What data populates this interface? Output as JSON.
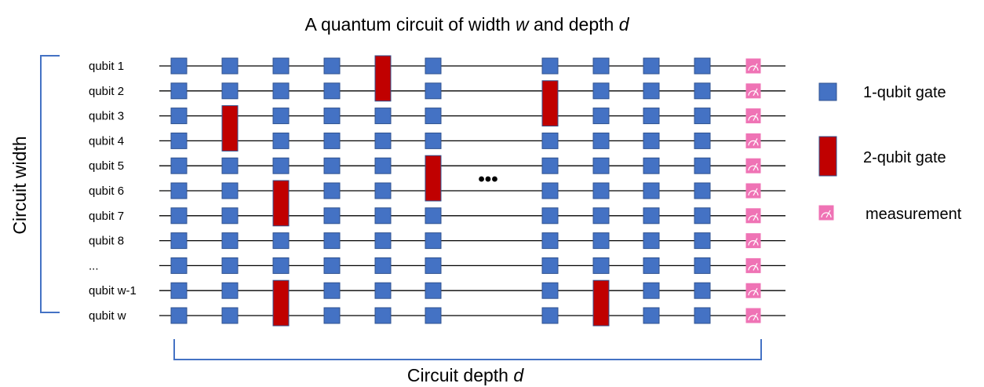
{
  "title": {
    "prefix": "A quantum circuit of width ",
    "w": "w",
    "middle": " and depth ",
    "d": "d"
  },
  "width_label": "Circuit width",
  "depth_label": {
    "prefix": "Circuit depth ",
    "d": "d"
  },
  "qubits": [
    "qubit 1",
    "qubit 2",
    "qubit 3",
    "qubit 4",
    "qubit 5",
    "qubit 6",
    "qubit 7",
    "qubit 8",
    "...",
    "qubit w-1",
    "qubit w"
  ],
  "ellipsis": "•••",
  "legend": [
    {
      "kind": "one_qubit",
      "label": "1-qubit gate"
    },
    {
      "kind": "two_qubit",
      "label": "2-qubit gate"
    },
    {
      "kind": "measurement",
      "label": "measurement",
      "icon": "meter-icon"
    }
  ],
  "colors": {
    "one_qubit_gate": "#4472c4",
    "two_qubit_gate": "#c00000",
    "measurement": "#ef73b5",
    "bracket": "#4472c4"
  },
  "circuit": {
    "columns_before_gap": 6,
    "columns_after_gap": 4,
    "two_qubit_gates": [
      {
        "column": 1,
        "qubits": [
          2,
          3
        ]
      },
      {
        "column": 2,
        "qubits": [
          5,
          6
        ]
      },
      {
        "column": 2,
        "qubits": [
          9,
          10
        ]
      },
      {
        "column": 4,
        "qubits": [
          0,
          1
        ]
      },
      {
        "column": 5,
        "qubits": [
          4,
          5
        ]
      },
      {
        "column": 6,
        "qubits": [
          1,
          2
        ]
      },
      {
        "column": 7,
        "qubits": [
          9,
          10
        ]
      }
    ]
  }
}
